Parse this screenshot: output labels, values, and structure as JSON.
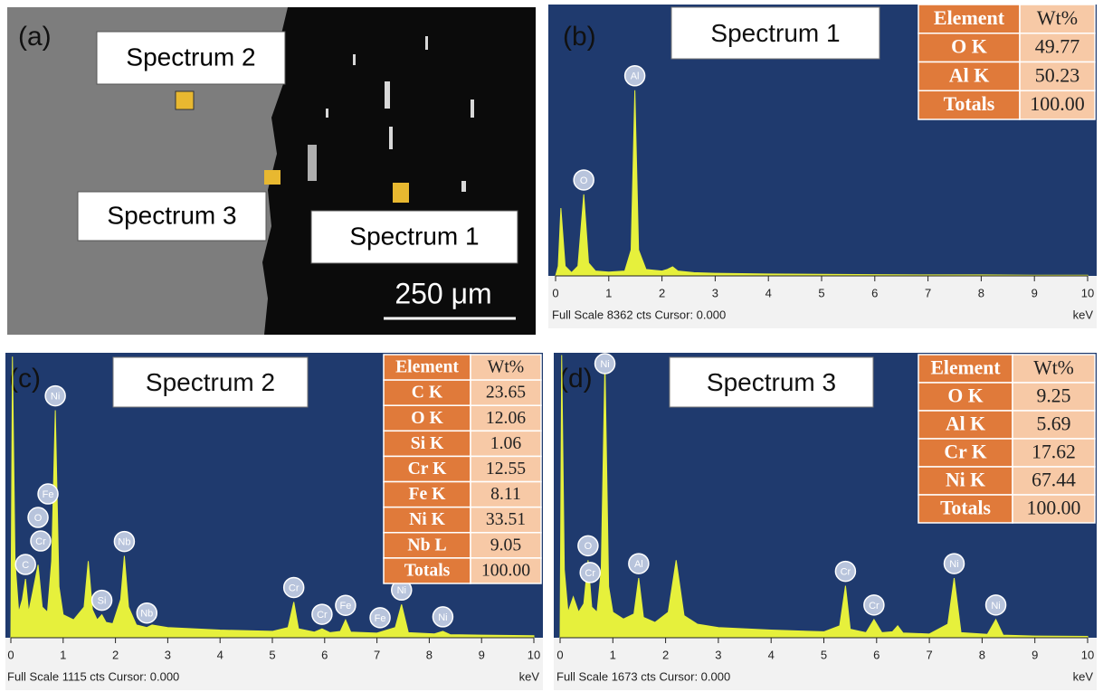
{
  "panel_a": {
    "label": "(a)",
    "markers": [
      "Spectrum 2",
      "Spectrum 3",
      "Spectrum 1"
    ],
    "scale_bar": "250 μm"
  },
  "chart_data": [
    {
      "type": "area",
      "panel_label": "(b)",
      "title": "Spectrum 1",
      "footer": "Full Scale 8362 cts Cursor: 0.000",
      "x_label": "keV",
      "xlim": [
        0,
        10
      ],
      "xticks": [
        0,
        1,
        2,
        3,
        4,
        5,
        6,
        7,
        8,
        9,
        10
      ],
      "ylim": [
        0,
        8362
      ],
      "x": [
        0,
        0.05,
        0.1,
        0.18,
        0.3,
        0.42,
        0.53,
        0.62,
        0.75,
        1.0,
        1.3,
        1.42,
        1.49,
        1.56,
        1.7,
        2.0,
        2.1,
        2.2,
        2.3,
        2.6,
        3,
        4,
        5,
        6,
        7,
        8,
        9,
        10
      ],
      "series": [
        {
          "color": "#e6f03c",
          "values": [
            0,
            300,
            2090,
            300,
            100,
            300,
            2510,
            400,
            150,
            120,
            150,
            800,
            5720,
            800,
            200,
            150,
            200,
            280,
            150,
            100,
            80,
            60,
            50,
            40,
            30,
            30,
            20,
            20
          ]
        }
      ],
      "peak_labels": [
        {
          "text": "O",
          "x": 0.53
        },
        {
          "text": "Al",
          "x": 1.49
        }
      ],
      "table": {
        "header": [
          "Element",
          "Wt%"
        ],
        "rows": [
          [
            "O K",
            "49.77"
          ],
          [
            "Al K",
            "50.23"
          ],
          [
            "Totals",
            "100.00"
          ]
        ]
      }
    },
    {
      "type": "area",
      "panel_label": "(c)",
      "title": "Spectrum 2",
      "footer": "Full Scale 1115 cts Cursor: 0.000",
      "x_label": "keV",
      "xlim": [
        0,
        10
      ],
      "xticks": [
        0,
        1,
        2,
        3,
        4,
        5,
        6,
        7,
        8,
        9,
        10
      ],
      "ylim": [
        0,
        1115
      ],
      "x": [
        0,
        0.03,
        0.08,
        0.15,
        0.22,
        0.28,
        0.34,
        0.42,
        0.52,
        0.6,
        0.7,
        0.78,
        0.85,
        0.92,
        1.0,
        1.2,
        1.4,
        1.48,
        1.56,
        1.65,
        1.74,
        1.82,
        1.95,
        2.1,
        2.17,
        2.25,
        2.4,
        2.6,
        2.7,
        3,
        4,
        5,
        5.3,
        5.41,
        5.5,
        5.8,
        5.95,
        6.1,
        6.3,
        6.4,
        6.5,
        7,
        7.35,
        7.47,
        7.6,
        8.1,
        8.26,
        8.4,
        9,
        10
      ],
      "series": [
        {
          "color": "#e6f03c",
          "values": [
            0,
            1100,
            300,
            100,
            150,
            230,
            100,
            180,
            285,
            120,
            100,
            300,
            890,
            200,
            90,
            70,
            120,
            300,
            110,
            70,
            90,
            60,
            55,
            150,
            320,
            120,
            50,
            40,
            50,
            40,
            30,
            25,
            40,
            140,
            35,
            22,
            35,
            20,
            25,
            70,
            22,
            18,
            40,
            130,
            20,
            15,
            25,
            12,
            10,
            8
          ]
        }
      ],
      "peak_labels": [
        {
          "text": "C",
          "x": 0.28
        },
        {
          "text": "Cr",
          "x": 0.57
        },
        {
          "text": "O",
          "x": 0.52
        },
        {
          "text": "Fe",
          "x": 0.71
        },
        {
          "text": "Ni",
          "x": 0.85
        },
        {
          "text": "Si",
          "x": 1.74
        },
        {
          "text": "Nb",
          "x": 2.17
        },
        {
          "text": "Nb",
          "x": 2.6
        },
        {
          "text": "Cr",
          "x": 5.41
        },
        {
          "text": "Cr",
          "x": 5.95
        },
        {
          "text": "Fe",
          "x": 6.4
        },
        {
          "text": "Fe",
          "x": 7.06
        },
        {
          "text": "Ni",
          "x": 7.47
        },
        {
          "text": "Ni",
          "x": 8.26
        }
      ],
      "table": {
        "header": [
          "Element",
          "Wt%"
        ],
        "rows": [
          [
            "C K",
            "23.65"
          ],
          [
            "O K",
            "12.06"
          ],
          [
            "Si K",
            "1.06"
          ],
          [
            "Cr K",
            "12.55"
          ],
          [
            "Fe K",
            "8.11"
          ],
          [
            "Ni K",
            "33.51"
          ],
          [
            "Nb L",
            "9.05"
          ],
          [
            "Totals",
            "100.00"
          ]
        ]
      }
    },
    {
      "type": "area",
      "panel_label": "(d)",
      "title": "Spectrum 3",
      "footer": "Full Scale 1673 cts Cursor: 0.000",
      "x_label": "keV",
      "xlim": [
        0,
        10
      ],
      "xticks": [
        0,
        1,
        2,
        3,
        4,
        5,
        6,
        7,
        8,
        9,
        10
      ],
      "ylim": [
        0,
        1673
      ],
      "x": [
        0,
        0.03,
        0.08,
        0.15,
        0.25,
        0.35,
        0.45,
        0.53,
        0.6,
        0.7,
        0.78,
        0.85,
        0.92,
        1.0,
        1.2,
        1.4,
        1.49,
        1.58,
        1.8,
        2.05,
        2.2,
        2.35,
        2.6,
        3,
        4,
        5,
        5.3,
        5.41,
        5.5,
        5.8,
        5.95,
        6.1,
        6.3,
        6.4,
        6.5,
        7,
        7.35,
        7.47,
        7.6,
        8.1,
        8.26,
        8.4,
        9,
        10
      ],
      "series": [
        {
          "color": "#e6f03c",
          "values": [
            0,
            1660,
            400,
            150,
            240,
            150,
            200,
            455,
            180,
            150,
            400,
            1620,
            300,
            150,
            110,
            140,
            350,
            120,
            90,
            150,
            455,
            130,
            80,
            60,
            45,
            35,
            70,
            305,
            50,
            30,
            107,
            30,
            35,
            70,
            28,
            22,
            80,
            350,
            30,
            20,
            107,
            15,
            10,
            8
          ]
        }
      ],
      "peak_labels": [
        {
          "text": "Cr",
          "x": 0.57
        },
        {
          "text": "O",
          "x": 0.53
        },
        {
          "text": "Ni",
          "x": 0.85
        },
        {
          "text": "Al",
          "x": 1.49
        },
        {
          "text": "Cr",
          "x": 5.41
        },
        {
          "text": "Cr",
          "x": 5.95
        },
        {
          "text": "Ni",
          "x": 7.47
        },
        {
          "text": "Ni",
          "x": 8.26
        }
      ],
      "table": {
        "header": [
          "Element",
          "Wt%"
        ],
        "rows": [
          [
            "O K",
            "9.25"
          ],
          [
            "Al K",
            "5.69"
          ],
          [
            "Cr K",
            "17.62"
          ],
          [
            "Ni K",
            "67.44"
          ],
          [
            "Totals",
            "100.00"
          ]
        ]
      }
    }
  ]
}
